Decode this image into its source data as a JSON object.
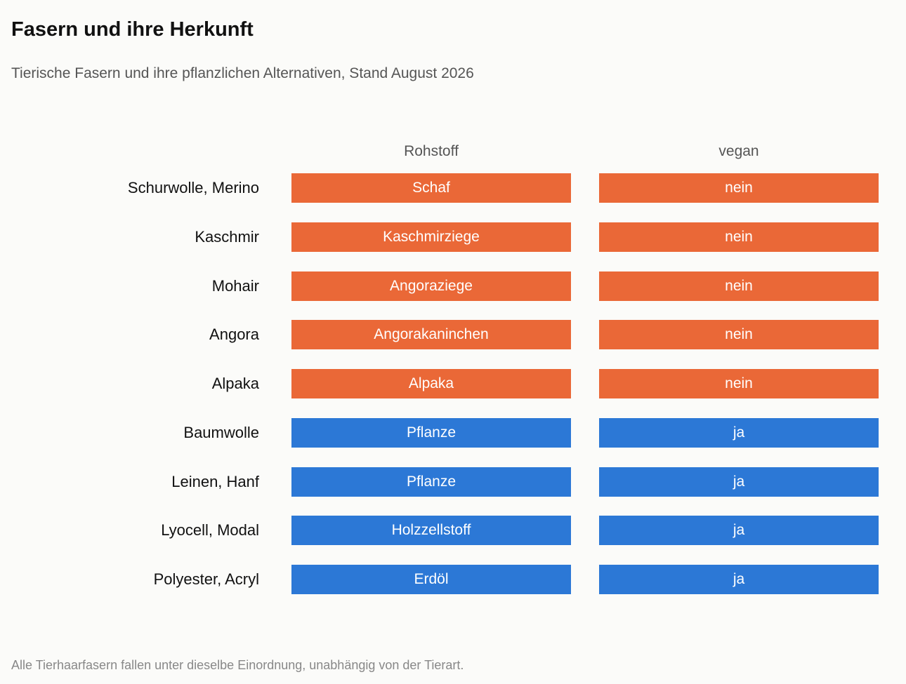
{
  "title": "Fasern und ihre Herkunft",
  "subtitle": "Tierische Fasern und ihre pflanzlichen Alternativen, Stand August 2026",
  "note": "Alle Tierhaarfasern fallen unter dieselbe Einordnung, unabhängig von der Tierart.",
  "colors": {
    "animal": "#ea6837",
    "plant": "#2c78d6"
  },
  "chart_data": {
    "type": "table",
    "columns": [
      "Rohstoff",
      "vegan"
    ],
    "rows": [
      {
        "label": "Schurwolle, Merino",
        "rohstoff": "Schaf",
        "vegan": "nein",
        "category": "animal"
      },
      {
        "label": "Kaschmir",
        "rohstoff": "Kaschmirziege",
        "vegan": "nein",
        "category": "animal"
      },
      {
        "label": "Mohair",
        "rohstoff": "Angoraziege",
        "vegan": "nein",
        "category": "animal"
      },
      {
        "label": "Angora",
        "rohstoff": "Angorakaninchen",
        "vegan": "nein",
        "category": "animal"
      },
      {
        "label": "Alpaka",
        "rohstoff": "Alpaka",
        "vegan": "nein",
        "category": "animal"
      },
      {
        "label": "Baumwolle",
        "rohstoff": "Pflanze",
        "vegan": "ja",
        "category": "plant"
      },
      {
        "label": "Leinen, Hanf",
        "rohstoff": "Pflanze",
        "vegan": "ja",
        "category": "plant"
      },
      {
        "label": "Lyocell, Modal",
        "rohstoff": "Holzzellstoff",
        "vegan": "ja",
        "category": "plant"
      },
      {
        "label": "Polyester, Acryl",
        "rohstoff": "Erdöl",
        "vegan": "ja",
        "category": "plant"
      }
    ]
  }
}
